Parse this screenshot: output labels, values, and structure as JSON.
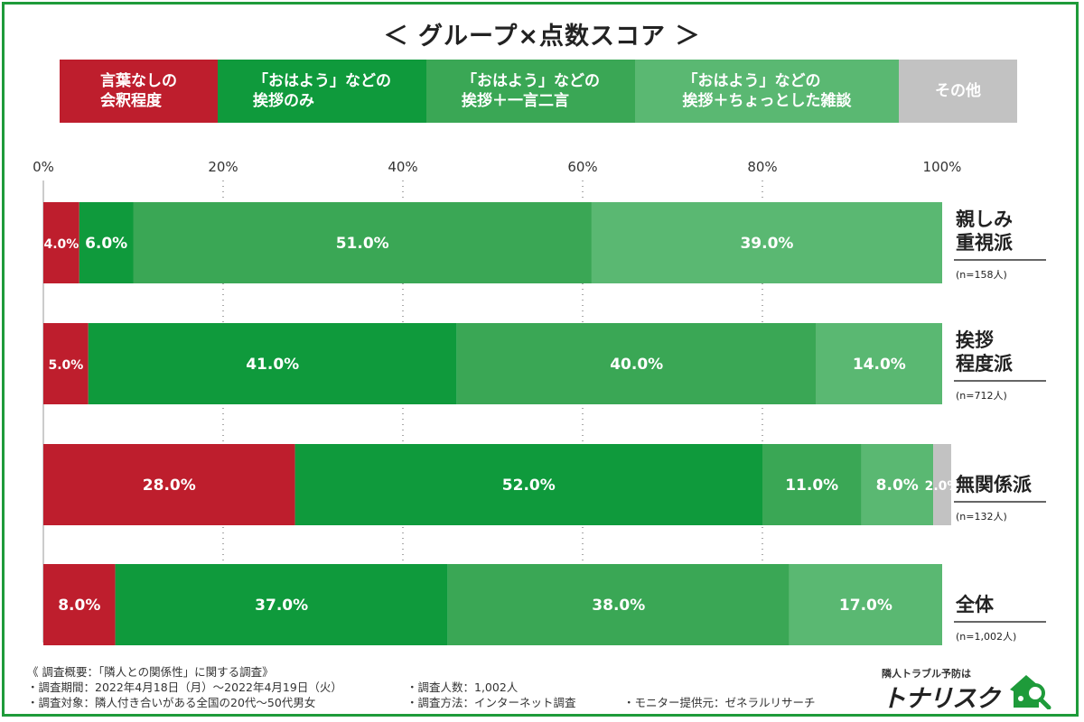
{
  "title": "＜ グループ×点数スコア ＞",
  "legend": [
    {
      "label": "言葉なしの\n会釈程度",
      "color": "#be1e2d"
    },
    {
      "label": "「おはよう」などの\n挨拶のみ",
      "color": "#0f9a3c"
    },
    {
      "label": "「おはよう」などの\n挨拶＋一言二言",
      "color": "#3aa755"
    },
    {
      "label": "「おはよう」などの\n挨拶＋ちょっとした雑談",
      "color": "#5ab872"
    },
    {
      "label": "その他",
      "color": "#c2c2c2"
    }
  ],
  "chart_data": {
    "type": "bar",
    "orientation": "horizontal",
    "stacked": true,
    "title": "＜ グループ×点数スコア ＞",
    "xlim": [
      0,
      100
    ],
    "x_ticks": [
      "0%",
      "20%",
      "40%",
      "60%",
      "80%",
      "100%"
    ],
    "grid": "vertical dotted",
    "legend_position": "top",
    "categories": [
      {
        "name": "親しみ\n重視派",
        "n": "(n=158人)"
      },
      {
        "name": "挨拶\n程度派",
        "n": "(n=712人)"
      },
      {
        "name": "無関係派",
        "n": "(n=132人)"
      },
      {
        "name": "全体",
        "n": "(n=1,002人)"
      }
    ],
    "series": [
      {
        "name": "言葉なしの会釈程度",
        "values": [
          4.0,
          5.0,
          28.0,
          8.0
        ],
        "labels": [
          "4.0%",
          "5.0%",
          "28.0%",
          "8.0%"
        ]
      },
      {
        "name": "「おはよう」などの挨拶のみ",
        "values": [
          6.0,
          41.0,
          52.0,
          37.0
        ],
        "labels": [
          "6.0%",
          "41.0%",
          "52.0%",
          "37.0%"
        ]
      },
      {
        "name": "「おはよう」などの挨拶＋一言二言",
        "values": [
          51.0,
          40.0,
          11.0,
          38.0
        ],
        "labels": [
          "51.0%",
          "40.0%",
          "11.0%",
          "38.0%"
        ]
      },
      {
        "name": "「おはよう」などの挨拶＋ちょっとした雑談",
        "values": [
          39.0,
          14.0,
          8.0,
          17.0
        ],
        "labels": [
          "39.0%",
          "14.0%",
          "8.0%",
          "17.0%"
        ]
      },
      {
        "name": "その他",
        "values": [
          0,
          0,
          2.0,
          0
        ],
        "labels": [
          "",
          "",
          "2.0%",
          ""
        ]
      }
    ]
  },
  "notes": {
    "heading": "《 調査概要：「隣人との関係性」に関する調査》",
    "period": "・調査期間：2022年4月18日（月）～2022年4月19日（火）",
    "respondents": "・調査人数：1,002人",
    "target": "・調査対象：隣人付き合いがある全国の20代～50代男女",
    "method": "・調査方法：インターネット調査",
    "provider": "・モニター提供元：ゼネラルリサーチ"
  },
  "logo": {
    "tagline": "隣人トラブル予防は",
    "name": "トナリスク",
    "icon": "house-magnifier-icon",
    "color": "#1e9b3a"
  }
}
